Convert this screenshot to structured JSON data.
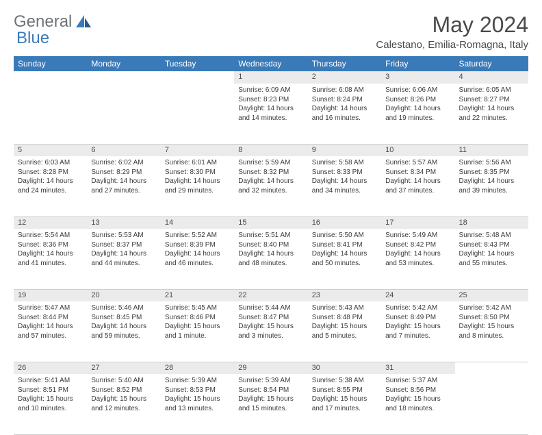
{
  "logo": {
    "text1": "General",
    "text2": "Blue"
  },
  "title": "May 2024",
  "location": "Calestano, Emilia-Romagna, Italy",
  "style": {
    "header_bg": "#3a7ab8",
    "header_fg": "#ffffff",
    "daynum_bg": "#ebebeb",
    "text_color": "#4a4a4a",
    "logo_gray": "#6f7378",
    "logo_blue": "#3a7ab8",
    "border_color": "#cfcfcf",
    "month_fontsize": 32,
    "location_fontsize": 15,
    "dayheader_fontsize": 12,
    "daynum_fontsize": 11,
    "cell_fontsize": 10
  },
  "day_headers": [
    "Sunday",
    "Monday",
    "Tuesday",
    "Wednesday",
    "Thursday",
    "Friday",
    "Saturday"
  ],
  "weeks": [
    [
      null,
      null,
      null,
      {
        "n": "1",
        "sunrise": "6:09 AM",
        "sunset": "8:23 PM",
        "daylight": "14 hours and 14 minutes."
      },
      {
        "n": "2",
        "sunrise": "6:08 AM",
        "sunset": "8:24 PM",
        "daylight": "14 hours and 16 minutes."
      },
      {
        "n": "3",
        "sunrise": "6:06 AM",
        "sunset": "8:26 PM",
        "daylight": "14 hours and 19 minutes."
      },
      {
        "n": "4",
        "sunrise": "6:05 AM",
        "sunset": "8:27 PM",
        "daylight": "14 hours and 22 minutes."
      }
    ],
    [
      {
        "n": "5",
        "sunrise": "6:03 AM",
        "sunset": "8:28 PM",
        "daylight": "14 hours and 24 minutes."
      },
      {
        "n": "6",
        "sunrise": "6:02 AM",
        "sunset": "8:29 PM",
        "daylight": "14 hours and 27 minutes."
      },
      {
        "n": "7",
        "sunrise": "6:01 AM",
        "sunset": "8:30 PM",
        "daylight": "14 hours and 29 minutes."
      },
      {
        "n": "8",
        "sunrise": "5:59 AM",
        "sunset": "8:32 PM",
        "daylight": "14 hours and 32 minutes."
      },
      {
        "n": "9",
        "sunrise": "5:58 AM",
        "sunset": "8:33 PM",
        "daylight": "14 hours and 34 minutes."
      },
      {
        "n": "10",
        "sunrise": "5:57 AM",
        "sunset": "8:34 PM",
        "daylight": "14 hours and 37 minutes."
      },
      {
        "n": "11",
        "sunrise": "5:56 AM",
        "sunset": "8:35 PM",
        "daylight": "14 hours and 39 minutes."
      }
    ],
    [
      {
        "n": "12",
        "sunrise": "5:54 AM",
        "sunset": "8:36 PM",
        "daylight": "14 hours and 41 minutes."
      },
      {
        "n": "13",
        "sunrise": "5:53 AM",
        "sunset": "8:37 PM",
        "daylight": "14 hours and 44 minutes."
      },
      {
        "n": "14",
        "sunrise": "5:52 AM",
        "sunset": "8:39 PM",
        "daylight": "14 hours and 46 minutes."
      },
      {
        "n": "15",
        "sunrise": "5:51 AM",
        "sunset": "8:40 PM",
        "daylight": "14 hours and 48 minutes."
      },
      {
        "n": "16",
        "sunrise": "5:50 AM",
        "sunset": "8:41 PM",
        "daylight": "14 hours and 50 minutes."
      },
      {
        "n": "17",
        "sunrise": "5:49 AM",
        "sunset": "8:42 PM",
        "daylight": "14 hours and 53 minutes."
      },
      {
        "n": "18",
        "sunrise": "5:48 AM",
        "sunset": "8:43 PM",
        "daylight": "14 hours and 55 minutes."
      }
    ],
    [
      {
        "n": "19",
        "sunrise": "5:47 AM",
        "sunset": "8:44 PM",
        "daylight": "14 hours and 57 minutes."
      },
      {
        "n": "20",
        "sunrise": "5:46 AM",
        "sunset": "8:45 PM",
        "daylight": "14 hours and 59 minutes."
      },
      {
        "n": "21",
        "sunrise": "5:45 AM",
        "sunset": "8:46 PM",
        "daylight": "15 hours and 1 minute."
      },
      {
        "n": "22",
        "sunrise": "5:44 AM",
        "sunset": "8:47 PM",
        "daylight": "15 hours and 3 minutes."
      },
      {
        "n": "23",
        "sunrise": "5:43 AM",
        "sunset": "8:48 PM",
        "daylight": "15 hours and 5 minutes."
      },
      {
        "n": "24",
        "sunrise": "5:42 AM",
        "sunset": "8:49 PM",
        "daylight": "15 hours and 7 minutes."
      },
      {
        "n": "25",
        "sunrise": "5:42 AM",
        "sunset": "8:50 PM",
        "daylight": "15 hours and 8 minutes."
      }
    ],
    [
      {
        "n": "26",
        "sunrise": "5:41 AM",
        "sunset": "8:51 PM",
        "daylight": "15 hours and 10 minutes."
      },
      {
        "n": "27",
        "sunrise": "5:40 AM",
        "sunset": "8:52 PM",
        "daylight": "15 hours and 12 minutes."
      },
      {
        "n": "28",
        "sunrise": "5:39 AM",
        "sunset": "8:53 PM",
        "daylight": "15 hours and 13 minutes."
      },
      {
        "n": "29",
        "sunrise": "5:39 AM",
        "sunset": "8:54 PM",
        "daylight": "15 hours and 15 minutes."
      },
      {
        "n": "30",
        "sunrise": "5:38 AM",
        "sunset": "8:55 PM",
        "daylight": "15 hours and 17 minutes."
      },
      {
        "n": "31",
        "sunrise": "5:37 AM",
        "sunset": "8:56 PM",
        "daylight": "15 hours and 18 minutes."
      },
      null
    ]
  ],
  "labels": {
    "sunrise": "Sunrise:",
    "sunset": "Sunset:",
    "daylight": "Daylight:"
  }
}
